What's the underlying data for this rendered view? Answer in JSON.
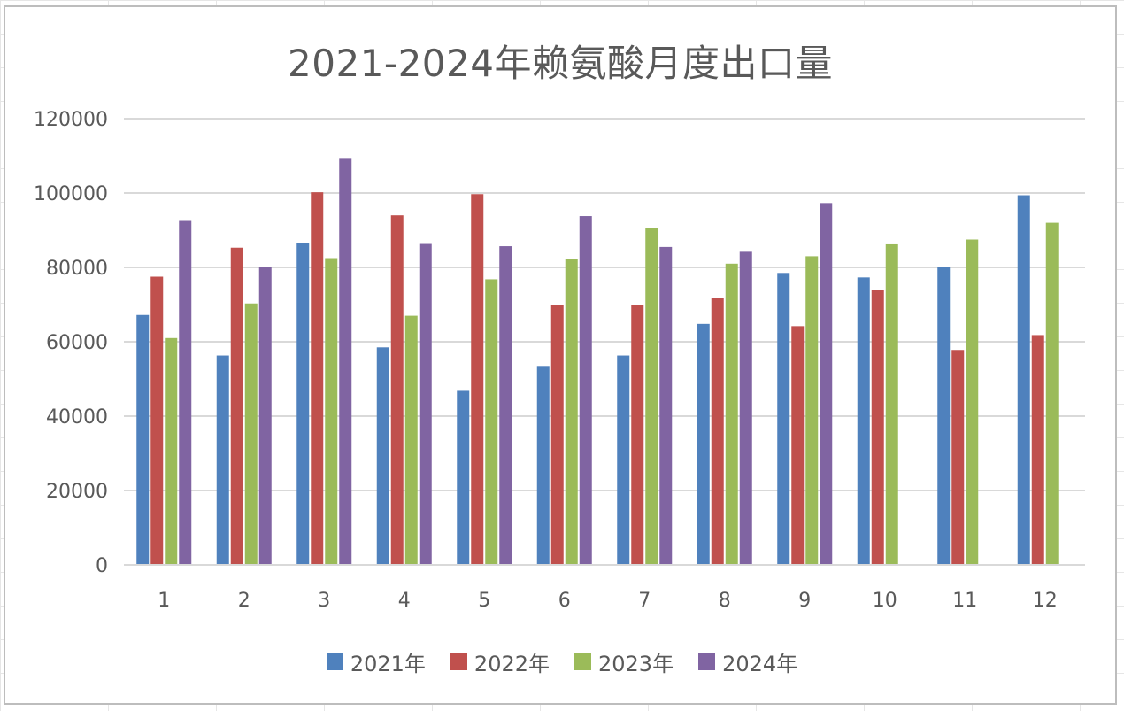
{
  "chart_data": {
    "type": "bar",
    "title": "2021-2024年赖氨酸月度出口量",
    "xlabel": "",
    "ylabel": "",
    "categories": [
      "1",
      "2",
      "3",
      "4",
      "5",
      "6",
      "7",
      "8",
      "9",
      "10",
      "11",
      "12"
    ],
    "ylim": [
      0,
      120000
    ],
    "yticks": [
      "0",
      "20000",
      "40000",
      "60000",
      "80000",
      "100000",
      "120000"
    ],
    "grid": true,
    "legend_position": "bottom",
    "series": [
      {
        "name": "2021年",
        "color": "#4f81bd",
        "values": [
          67200,
          56300,
          86500,
          58500,
          46800,
          53500,
          56300,
          64800,
          78500,
          77300,
          80200,
          99400
        ]
      },
      {
        "name": "2022年",
        "color": "#c0504d",
        "values": [
          77500,
          85300,
          100200,
          94000,
          99700,
          70000,
          70000,
          71800,
          64200,
          74000,
          57800,
          61800
        ]
      },
      {
        "name": "2023年",
        "color": "#9bbb59",
        "values": [
          61000,
          70300,
          82500,
          67000,
          76800,
          82300,
          90500,
          81000,
          83000,
          86200,
          87500,
          92000
        ]
      },
      {
        "name": "2024年",
        "color": "#8064a2",
        "values": [
          92500,
          80000,
          109200,
          86300,
          85700,
          93800,
          85500,
          84200,
          97300,
          null,
          null,
          null
        ]
      }
    ]
  }
}
